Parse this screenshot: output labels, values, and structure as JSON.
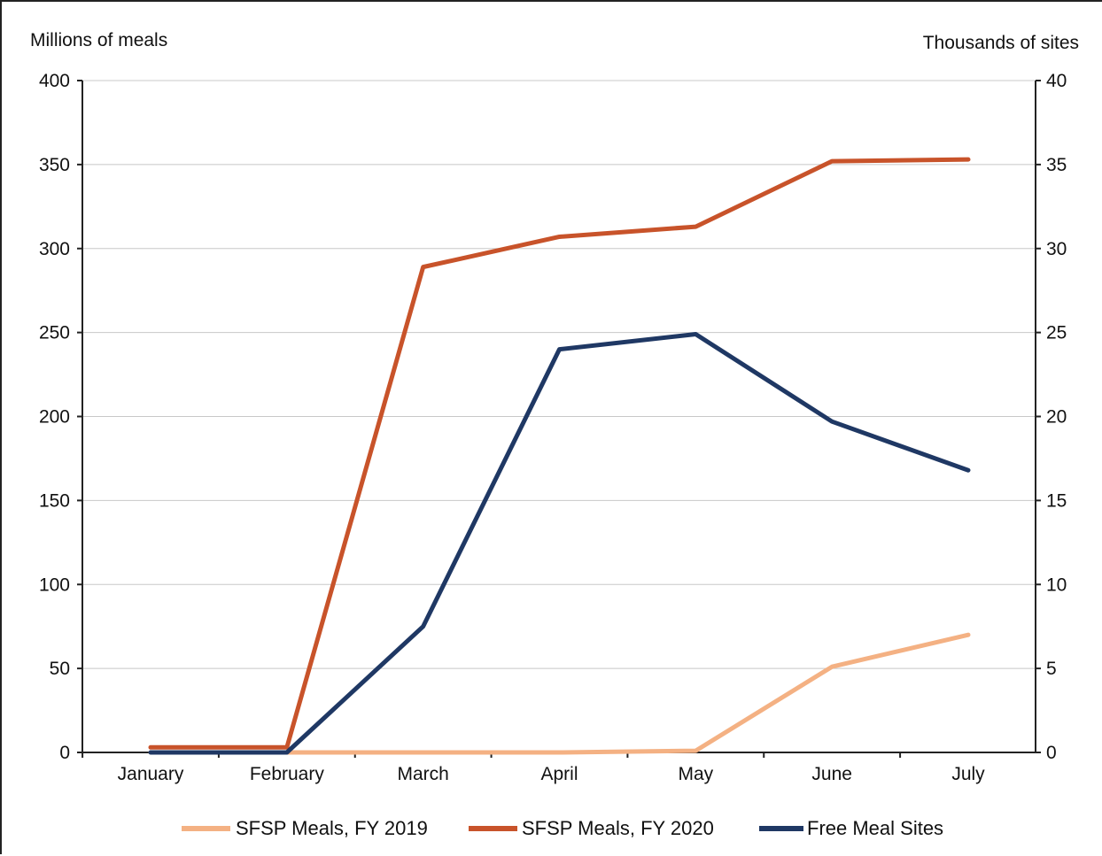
{
  "chart_data": {
    "type": "line",
    "categories": [
      "January",
      "February",
      "March",
      "April",
      "May",
      "June",
      "July"
    ],
    "y_left": {
      "label": "Millions of meals",
      "range": [
        0,
        400
      ],
      "ticks": [
        0,
        50,
        100,
        150,
        200,
        250,
        300,
        350,
        400
      ]
    },
    "y_right": {
      "label": "Thousands of sites",
      "range": [
        0,
        40
      ],
      "ticks": [
        0,
        5,
        10,
        15,
        20,
        25,
        30,
        35,
        40
      ]
    },
    "grid": true,
    "legend_position": "bottom",
    "series": [
      {
        "name": "SFSP Meals, FY 2019",
        "axis": "left",
        "color": "#f4b183",
        "values": [
          0,
          0,
          0,
          0,
          1,
          51,
          70
        ]
      },
      {
        "name": "SFSP Meals, FY 2020",
        "axis": "left",
        "color": "#c8532a",
        "values": [
          3,
          3,
          289,
          307,
          313,
          352,
          353
        ]
      },
      {
        "name": "Free Meal Sites",
        "axis": "right",
        "color": "#1f3864",
        "values": [
          0,
          0,
          7.5,
          24,
          24.9,
          19.7,
          16.8
        ]
      }
    ]
  }
}
